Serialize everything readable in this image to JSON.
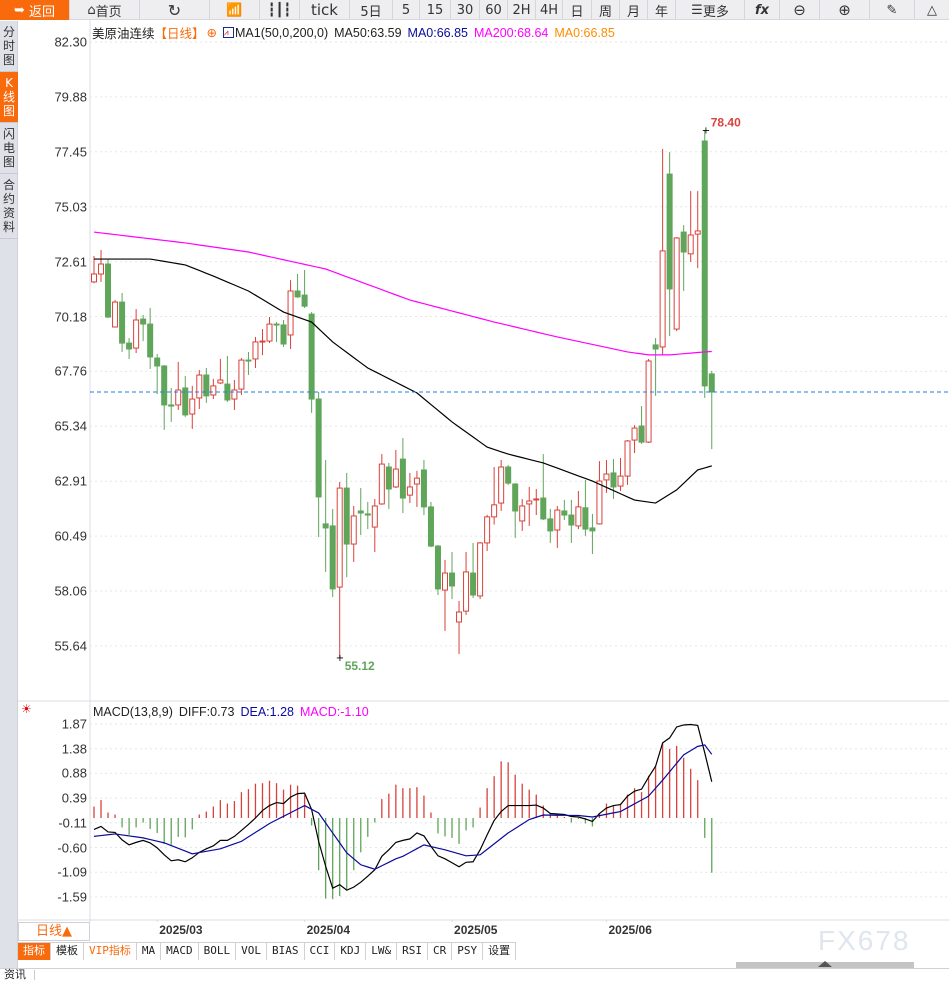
{
  "toolbar": {
    "back": "返回",
    "home": "首页",
    "tick": "tick",
    "five_day": "5日",
    "periods": [
      "5",
      "15",
      "30",
      "60",
      "2H",
      "4H",
      "日",
      "周",
      "月",
      "年"
    ],
    "more": "更多",
    "fx": "fx",
    "icons": [
      "back-arrow-icon",
      "home-icon",
      "refresh-icon",
      "indicator-chart-icon",
      "candlestick-icon",
      "menu-icon",
      "function-icon",
      "zoom-out-icon",
      "zoom-in-icon",
      "pen-icon",
      "triangle-icon"
    ]
  },
  "sidebar": {
    "tabs": [
      "分时图",
      "K线图",
      "闪电图",
      "合约资料"
    ],
    "active": 1
  },
  "legend": {
    "symbol": "美原油连续",
    "period": "【日线】",
    "ma_set": "MA1(50,0,200,0)",
    "ma50": "MA50:63.59",
    "ma0a": "MA0:66.85",
    "ma200": "MA200:68.64",
    "ma0b": "MA0:66.85"
  },
  "macd_legend": {
    "title": "MACD(13,8,9)",
    "diff": "DIFF:0.73",
    "dea": "DEA:1.28",
    "macd": "MACD:-1.10"
  },
  "colors": {
    "up": "#d9413a",
    "down": "#5fa55a",
    "ma50": "#000000",
    "ma200": "#ff00ff",
    "dea": "#0a0a9c",
    "accent": "#f86a0c",
    "last_price_line": "#1e7fe6",
    "ma0a": "#0a0a9c",
    "ma0b": "#ff8c00"
  },
  "price_axis": [
    "82.30",
    "79.88",
    "77.45",
    "75.03",
    "72.61",
    "70.18",
    "67.76",
    "65.34",
    "62.91",
    "60.49",
    "58.06",
    "55.64"
  ],
  "macd_axis": [
    "1.87",
    "1.38",
    "0.88",
    "0.39",
    "-0.11",
    "-0.60",
    "-1.09",
    "-1.59"
  ],
  "chart_data": {
    "type": "candlestick",
    "ylim": [
      55.64,
      82.3
    ],
    "last_price": 66.85,
    "max_label": "78.40",
    "min_label": "55.12",
    "x_ticks": [
      {
        "label": "2025/03",
        "candle": 12
      },
      {
        "label": "2025/04",
        "candle": 33
      },
      {
        "label": "2025/05",
        "candle": 54
      },
      {
        "label": "2025/06",
        "candle": 76
      }
    ],
    "ohlc": [
      [
        71.71,
        72.85,
        71.65,
        72.06
      ],
      [
        72.06,
        73.12,
        71.71,
        72.5
      ],
      [
        72.5,
        72.72,
        70.12,
        70.16
      ],
      [
        69.72,
        70.91,
        69.7,
        70.82
      ],
      [
        70.82,
        71.22,
        68.62,
        69.01
      ],
      [
        69.01,
        69.23,
        68.31,
        68.75
      ],
      [
        68.79,
        70.51,
        68.57,
        70.03
      ],
      [
        70.07,
        70.25,
        69.1,
        69.85
      ],
      [
        69.85,
        70.56,
        67.87,
        68.4
      ],
      [
        68.35,
        68.53,
        66.76,
        68.0
      ],
      [
        68.0,
        68.04,
        65.18,
        66.28
      ],
      [
        66.28,
        67.03,
        65.53,
        66.23
      ],
      [
        66.28,
        68.18,
        66.06,
        66.94
      ],
      [
        67.03,
        67.56,
        65.75,
        65.84
      ],
      [
        65.88,
        67.12,
        65.22,
        66.54
      ],
      [
        66.59,
        67.82,
        66.1,
        67.6
      ],
      [
        67.6,
        67.91,
        66.37,
        66.68
      ],
      [
        66.72,
        67.43,
        66.54,
        67.12
      ],
      [
        67.25,
        68.31,
        67.2,
        67.38
      ],
      [
        67.2,
        68.44,
        66.41,
        66.5
      ],
      [
        66.54,
        67.38,
        66.06,
        66.94
      ],
      [
        66.98,
        68.35,
        66.72,
        68.26
      ],
      [
        68.26,
        68.62,
        67.6,
        68.22
      ],
      [
        68.31,
        69.28,
        67.91,
        69.06
      ],
      [
        69.06,
        69.63,
        68.48,
        69.1
      ],
      [
        69.1,
        70.16,
        69.01,
        69.85
      ],
      [
        69.85,
        69.94,
        69.06,
        69.81
      ],
      [
        69.81,
        70.03,
        68.84,
        68.97
      ],
      [
        69.37,
        71.79,
        68.75,
        71.31
      ],
      [
        71.31,
        72.06,
        71.0,
        71.05
      ],
      [
        71.13,
        72.24,
        70.56,
        70.64
      ],
      [
        70.29,
        70.38,
        65.93,
        66.54
      ],
      [
        66.54,
        66.85,
        60.45,
        62.22
      ],
      [
        61.03,
        63.85,
        58.91,
        60.85
      ],
      [
        60.94,
        61.69,
        57.8,
        58.16
      ],
      [
        58.24,
        62.88,
        55.12,
        62.61
      ],
      [
        62.61,
        63.28,
        58.68,
        60.14
      ],
      [
        60.14,
        61.82,
        59.35,
        61.38
      ],
      [
        61.6,
        62.61,
        60.54,
        61.51
      ],
      [
        61.47,
        62.0,
        60.8,
        61.42
      ],
      [
        60.89,
        62.13,
        59.79,
        61.82
      ],
      [
        61.91,
        64.11,
        61.87,
        63.67
      ],
      [
        63.54,
        63.72,
        61.69,
        62.57
      ],
      [
        62.66,
        64.29,
        62.61,
        63.45
      ],
      [
        63.89,
        64.82,
        61.51,
        62.17
      ],
      [
        62.3,
        63.28,
        61.95,
        62.66
      ],
      [
        62.79,
        63.37,
        61.78,
        63.05
      ],
      [
        63.41,
        63.85,
        61.42,
        61.78
      ],
      [
        61.78,
        62.0,
        60.0,
        60.05
      ],
      [
        60.05,
        60.1,
        57.89,
        58.16
      ],
      [
        58.11,
        59.44,
        56.31,
        58.86
      ],
      [
        58.86,
        59.79,
        57.71,
        58.29
      ],
      [
        56.7,
        57.63,
        55.29,
        57.14
      ],
      [
        57.18,
        59.79,
        57.01,
        58.91
      ],
      [
        58.86,
        60.19,
        57.76,
        57.89
      ],
      [
        57.85,
        60.23,
        57.71,
        60.19
      ],
      [
        60.19,
        61.43,
        59.83,
        61.34
      ],
      [
        61.34,
        63.54,
        61.0,
        61.87
      ],
      [
        61.95,
        63.85,
        61.6,
        63.54
      ],
      [
        63.54,
        63.63,
        62.75,
        62.83
      ],
      [
        62.79,
        62.83,
        60.41,
        61.6
      ],
      [
        61.16,
        62.13,
        60.72,
        61.82
      ],
      [
        61.91,
        62.66,
        60.94,
        62.04
      ],
      [
        62.09,
        62.57,
        61.42,
        62.13
      ],
      [
        62.17,
        64.11,
        61.2,
        61.25
      ],
      [
        61.25,
        61.69,
        60.19,
        60.72
      ],
      [
        60.76,
        61.82,
        59.97,
        61.64
      ],
      [
        61.6,
        62.09,
        61.2,
        61.42
      ],
      [
        61.42,
        62.09,
        60.19,
        60.98
      ],
      [
        60.94,
        62.48,
        60.8,
        61.78
      ],
      [
        61.74,
        62.97,
        60.5,
        60.8
      ],
      [
        60.85,
        61.47,
        59.7,
        60.72
      ],
      [
        61.03,
        63.8,
        61.0,
        62.92
      ],
      [
        62.97,
        63.85,
        62.4,
        63.23
      ],
      [
        63.28,
        63.89,
        62.13,
        62.66
      ],
      [
        62.7,
        63.94,
        62.48,
        63.14
      ],
      [
        63.14,
        64.73,
        62.75,
        64.69
      ],
      [
        64.73,
        65.39,
        64.16,
        65.26
      ],
      [
        65.35,
        66.23,
        64.56,
        64.64
      ],
      [
        64.64,
        68.31,
        64.6,
        68.22
      ],
      [
        68.93,
        69.23,
        66.68,
        68.75
      ],
      [
        68.84,
        77.58,
        68.48,
        73.08
      ],
      [
        76.47,
        77.44,
        69.32,
        71.4
      ],
      [
        69.63,
        73.69,
        69.54,
        73.65
      ],
      [
        73.91,
        74.22,
        71.31,
        73.03
      ],
      [
        72.95,
        75.72,
        72.59,
        73.78
      ],
      [
        73.82,
        75.72,
        72.32,
        73.96
      ],
      [
        77.93,
        78.4,
        66.59,
        67.12
      ],
      [
        67.65,
        67.78,
        64.33,
        66.85
      ]
    ],
    "ma50": [
      [
        1,
        72.72
      ],
      [
        9,
        72.72
      ],
      [
        14,
        72.46
      ],
      [
        18,
        71.97
      ],
      [
        23,
        71.31
      ],
      [
        28,
        70.38
      ],
      [
        32,
        69.94
      ],
      [
        35,
        69.06
      ],
      [
        40,
        67.91
      ],
      [
        47,
        66.81
      ],
      [
        52,
        65.53
      ],
      [
        57,
        64.42
      ],
      [
        60,
        64.11
      ],
      [
        65,
        63.72
      ],
      [
        72,
        62.92
      ],
      [
        78,
        62.08
      ],
      [
        81,
        61.95
      ],
      [
        84,
        62.53
      ],
      [
        87,
        63.41
      ],
      [
        89,
        63.59
      ]
    ],
    "ma200": [
      [
        1,
        73.91
      ],
      [
        14,
        73.43
      ],
      [
        23,
        73.03
      ],
      [
        34,
        72.28
      ],
      [
        46,
        70.91
      ],
      [
        58,
        69.94
      ],
      [
        67,
        69.28
      ],
      [
        77,
        68.62
      ],
      [
        80,
        68.49
      ],
      [
        83,
        68.49
      ],
      [
        88,
        68.62
      ],
      [
        89,
        68.64
      ]
    ],
    "macd": {
      "ylim": [
        -1.8,
        2.0
      ],
      "diff": [
        -0.23,
        -0.17,
        -0.28,
        -0.29,
        -0.44,
        -0.54,
        -0.49,
        -0.45,
        -0.5,
        -0.6,
        -0.74,
        -0.86,
        -0.84,
        -0.88,
        -0.8,
        -0.69,
        -0.62,
        -0.56,
        -0.45,
        -0.45,
        -0.37,
        -0.25,
        -0.13,
        0,
        0.15,
        0.25,
        0.31,
        0.29,
        0.42,
        0.49,
        0.5,
        0.17,
        -0.47,
        -0.97,
        -1.41,
        -1.34,
        -1.45,
        -1.39,
        -1.29,
        -1.17,
        -1.04,
        -0.77,
        -0.64,
        -0.49,
        -0.45,
        -0.42,
        -0.3,
        -0.36,
        -0.57,
        -0.76,
        -0.82,
        -0.9,
        -0.98,
        -0.89,
        -0.88,
        -0.64,
        -0.34,
        -0.05,
        0.13,
        0.25,
        0.25,
        0.25,
        0.25,
        0.26,
        0.2,
        0.09,
        0.08,
        0.07,
        0.03,
        0.02,
        -0.02,
        -0.07,
        0.09,
        0.2,
        0.25,
        0.27,
        0.44,
        0.54,
        0.58,
        0.82,
        1.04,
        1.51,
        1.61,
        1.83,
        1.87,
        1.88,
        1.86,
        1.31,
        0.73
      ],
      "dea": [
        [
          1,
          -0.37
        ],
        [
          4,
          -0.32
        ],
        [
          8,
          -0.4
        ],
        [
          11,
          -0.5
        ],
        [
          15,
          -0.72
        ],
        [
          19,
          -0.62
        ],
        [
          22,
          -0.47
        ],
        [
          26,
          -0.11
        ],
        [
          31,
          0.25
        ],
        [
          33,
          0.1
        ],
        [
          35,
          -0.3
        ],
        [
          37,
          -0.7
        ],
        [
          39,
          -0.94
        ],
        [
          41,
          -1.03
        ],
        [
          44,
          -0.82
        ],
        [
          45,
          -0.77
        ],
        [
          48,
          -0.54
        ],
        [
          51,
          -0.64
        ],
        [
          54,
          -0.76
        ],
        [
          56,
          -0.74
        ],
        [
          60,
          -0.3
        ],
        [
          63,
          -0.03
        ],
        [
          65,
          0.06
        ],
        [
          70,
          0.05
        ],
        [
          72,
          0.02
        ],
        [
          76,
          0.13
        ],
        [
          80,
          0.44
        ],
        [
          82,
          0.76
        ],
        [
          85,
          1.27
        ],
        [
          87,
          1.44
        ],
        [
          88,
          1.47
        ],
        [
          89,
          1.28
        ]
      ],
      "hist": [
        0.23,
        0.36,
        0.11,
        0.07,
        -0.19,
        -0.34,
        -0.19,
        -0.09,
        -0.22,
        -0.3,
        -0.52,
        -0.54,
        -0.38,
        -0.39,
        -0.23,
        0.07,
        0.13,
        0.23,
        0.36,
        0.29,
        0.34,
        0.52,
        0.58,
        0.69,
        0.7,
        0.75,
        0.7,
        0.57,
        0.67,
        0.65,
        0.47,
        -0.15,
        -1.05,
        -1.62,
        -1.63,
        -1.57,
        -1.43,
        -1.05,
        -0.69,
        -0.38,
        -0.09,
        0.38,
        0.49,
        0.67,
        0.6,
        0.6,
        0.62,
        0.45,
        0.11,
        -0.31,
        -0.37,
        -0.4,
        -0.52,
        -0.25,
        -0.19,
        0.21,
        0.6,
        0.84,
        1.14,
        1.12,
        0.87,
        0.69,
        0.57,
        0.47,
        0.25,
        0.1,
        0.07,
        0.02,
        -0.09,
        -0.02,
        -0.11,
        -0.17,
        0.1,
        0.29,
        0.25,
        0.29,
        0.47,
        0.6,
        0.52,
        0.85,
        1.03,
        1.52,
        1.39,
        1.45,
        1.21,
        0.99,
        0.76,
        -0.4,
        -1.1
      ]
    }
  },
  "bottom": {
    "period_button": "日线▲",
    "indicator_tabs": [
      "指标",
      "模板",
      "VIP指标",
      "MA",
      "MACD",
      "BOLL",
      "VOL",
      "BIAS",
      "CCI",
      "KDJ",
      "LW&",
      "RSI",
      "CR",
      "PSY",
      "设置"
    ],
    "watermark": "FX678",
    "news_tab": "资讯"
  }
}
